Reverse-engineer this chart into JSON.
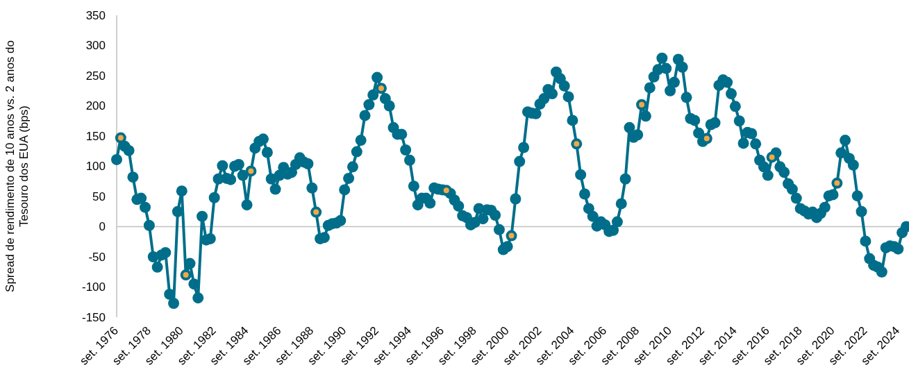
{
  "chart_data": {
    "type": "line",
    "ylabel": "Spread de rendimento de 10 anos vs. 2 anos do Tesouro dos EUA (bps)",
    "categories": [
      "set. 1976",
      null,
      null,
      null,
      null,
      null,
      null,
      null,
      "set. 1978",
      null,
      null,
      null,
      null,
      null,
      null,
      null,
      "set. 1980",
      null,
      null,
      null,
      null,
      null,
      null,
      null,
      "set. 1982",
      null,
      null,
      null,
      null,
      null,
      null,
      null,
      "set. 1984",
      null,
      null,
      null,
      null,
      null,
      null,
      null,
      "set. 1986",
      null,
      null,
      null,
      null,
      null,
      null,
      null,
      "set. 1988",
      null,
      null,
      null,
      null,
      null,
      null,
      null,
      "set. 1990",
      null,
      null,
      null,
      null,
      null,
      null,
      null,
      "set. 1992",
      null,
      null,
      null,
      null,
      null,
      null,
      null,
      "set. 1994",
      null,
      null,
      null,
      null,
      null,
      null,
      null,
      "set. 1996",
      null,
      null,
      null,
      null,
      null,
      null,
      null,
      "set. 1998",
      null,
      null,
      null,
      null,
      null,
      null,
      null,
      "set. 2000",
      null,
      null,
      null,
      null,
      null,
      null,
      null,
      "set. 2002",
      null,
      null,
      null,
      null,
      null,
      null,
      null,
      "set. 2004",
      null,
      null,
      null,
      null,
      null,
      null,
      null,
      "set. 2006",
      null,
      null,
      null,
      null,
      null,
      null,
      null,
      "set. 2008",
      null,
      null,
      null,
      null,
      null,
      null,
      null,
      "set. 2010",
      null,
      null,
      null,
      null,
      null,
      null,
      null,
      "set. 2012",
      null,
      null,
      null,
      null,
      null,
      null,
      null,
      "set. 2014",
      null,
      null,
      null,
      null,
      null,
      null,
      null,
      "set. 2016",
      null,
      null,
      null,
      null,
      null,
      null,
      null,
      "set. 2018",
      null,
      null,
      null,
      null,
      null,
      null,
      null,
      "set. 2020",
      null,
      null,
      null,
      null,
      null,
      null,
      null,
      "set. 2022",
      null,
      null,
      null,
      null,
      null,
      null,
      null,
      "set. 2024",
      null,
      null
    ],
    "series": [
      {
        "color": "#006e8a",
        "marker": "circle",
        "values": [
          111,
          147,
          133,
          126,
          82,
          45,
          47,
          32,
          2,
          -50,
          -67,
          -47,
          -43,
          -112,
          -127,
          25,
          59,
          -80,
          -61,
          -95,
          -118,
          17,
          -22,
          -20,
          48,
          79,
          101,
          80,
          78,
          100,
          103,
          85,
          36,
          92,
          130,
          141,
          145,
          123,
          79,
          62,
          85,
          98,
          87,
          90,
          103,
          114,
          107,
          104,
          64,
          24,
          -20,
          -18,
          2,
          5,
          6,
          10,
          61,
          80,
          99,
          124,
          143,
          184,
          202,
          218,
          247,
          229,
          212,
          200,
          164,
          153,
          153,
          127,
          110,
          67,
          36,
          47,
          47,
          39,
          64,
          62,
          61,
          60,
          55,
          44,
          34,
          18,
          15,
          3,
          7,
          30,
          13,
          28,
          27,
          19,
          -5,
          -38,
          -33,
          -15,
          46,
          108,
          131,
          190,
          188,
          187,
          203,
          212,
          227,
          220,
          256,
          245,
          233,
          215,
          176,
          137,
          86,
          54,
          30,
          17,
          1,
          8,
          3,
          -8,
          -6,
          8,
          38,
          79,
          164,
          148,
          152,
          202,
          183,
          230,
          248,
          260,
          279,
          262,
          225,
          239,
          277,
          264,
          214,
          179,
          176,
          155,
          141,
          146,
          169,
          172,
          234,
          243,
          239,
          220,
          199,
          175,
          138,
          156,
          154,
          137,
          110,
          99,
          85,
          115,
          122,
          99,
          90,
          71,
          62,
          47,
          30,
          26,
          21,
          24,
          15,
          22,
          32,
          51,
          53,
          72,
          122,
          143,
          113,
          102,
          51,
          25,
          -24,
          -53,
          -64,
          -67,
          -75,
          -35,
          -32,
          -33,
          -37,
          -10,
          0
        ]
      },
      {
        "type": "scatter",
        "color": "#f0a848",
        "marker": "circle",
        "values": [
          null,
          147,
          null,
          null,
          null,
          null,
          null,
          null,
          null,
          null,
          null,
          null,
          null,
          null,
          null,
          null,
          null,
          -80,
          null,
          null,
          null,
          null,
          null,
          null,
          null,
          null,
          null,
          null,
          null,
          null,
          null,
          null,
          null,
          92,
          null,
          null,
          null,
          null,
          null,
          null,
          null,
          null,
          null,
          null,
          null,
          null,
          null,
          null,
          null,
          24,
          null,
          null,
          null,
          null,
          null,
          null,
          null,
          null,
          null,
          null,
          null,
          null,
          null,
          null,
          null,
          229,
          null,
          null,
          null,
          null,
          null,
          null,
          null,
          null,
          null,
          null,
          null,
          null,
          null,
          null,
          null,
          60,
          null,
          null,
          null,
          null,
          null,
          null,
          null,
          null,
          null,
          null,
          null,
          null,
          null,
          null,
          null,
          -15,
          null,
          null,
          null,
          null,
          null,
          null,
          null,
          null,
          null,
          null,
          null,
          null,
          null,
          null,
          null,
          137,
          null,
          null,
          null,
          null,
          null,
          null,
          null,
          null,
          null,
          null,
          null,
          null,
          null,
          null,
          null,
          202,
          null,
          null,
          null,
          null,
          null,
          null,
          null,
          null,
          null,
          null,
          null,
          null,
          null,
          null,
          null,
          146,
          null,
          null,
          null,
          null,
          null,
          null,
          null,
          null,
          null,
          null,
          null,
          null,
          null,
          null,
          null,
          115,
          null,
          null,
          null,
          null,
          null,
          null,
          null,
          null,
          null,
          null,
          null,
          null,
          null,
          null,
          null,
          72,
          null,
          null,
          null,
          null,
          null,
          null,
          null,
          null,
          null,
          null,
          null,
          null,
          null,
          null,
          null,
          null,
          null
        ]
      }
    ],
    "ylim": [
      -150,
      350
    ],
    "yticks": [
      -150,
      -100,
      -50,
      0,
      50,
      100,
      150,
      200,
      250,
      300,
      350
    ],
    "ref_lines": [
      {
        "axis": "y",
        "value": 0,
        "color": "#bfbfbf"
      }
    ],
    "grid": false
  }
}
